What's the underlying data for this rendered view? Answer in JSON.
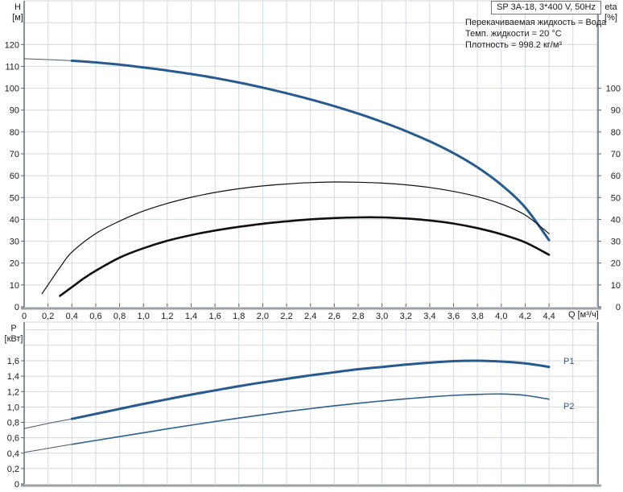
{
  "title_box": {
    "label": "SP 3A-18, 3*400 V, 50Hz"
  },
  "conditions": {
    "line1": "Перекачиваемая жидкость = Вода",
    "line2": "Темп. жидкости = 20 °C",
    "line3": "Плотность = 998.2 кг/м³"
  },
  "colors": {
    "grid": "#d3d9de",
    "axis": "#5a646d",
    "axis_bottom": "#9aa2a8",
    "curve_blue": "#275b8f",
    "curve_black": "#101010",
    "curve_tail": "#4a5a6a",
    "series_label": "#375a86"
  },
  "chart_data": [
    {
      "type": "line",
      "title": "SP 3A-18, 3*400 V, 50Hz",
      "x_axis": {
        "unit": "Q [м³/ч]",
        "min": 0,
        "max": 4.4,
        "grid_step": 0.2,
        "show_labels": true,
        "ticks": [
          [
            0,
            "0"
          ],
          [
            0.2,
            "0,2"
          ],
          [
            0.4,
            "0,4"
          ],
          [
            0.6,
            "0,6"
          ],
          [
            0.8,
            "0,8"
          ],
          [
            1,
            "1,0"
          ],
          [
            1.2,
            "1,2"
          ],
          [
            1.4,
            "1,4"
          ],
          [
            1.6,
            "1,6"
          ],
          [
            1.8,
            "1,8"
          ],
          [
            2,
            "2,0"
          ],
          [
            2.2,
            "2,2"
          ],
          [
            2.4,
            "2,4"
          ],
          [
            2.6,
            "2,6"
          ],
          [
            2.8,
            "2,8"
          ],
          [
            3,
            "3,0"
          ],
          [
            3.2,
            "3,2"
          ],
          [
            3.4,
            "3,4"
          ],
          [
            3.6,
            "3,6"
          ],
          [
            3.8,
            "3,8"
          ],
          [
            4,
            "4,0"
          ],
          [
            4.2,
            "4,2"
          ],
          [
            4.4,
            "4,4"
          ]
        ]
      },
      "y_left": {
        "name": "H",
        "unit": "[м]",
        "min": 0,
        "max": 120,
        "grid_step": 10,
        "ticks": [
          [
            0,
            "0"
          ],
          [
            10,
            "10"
          ],
          [
            20,
            "20"
          ],
          [
            30,
            "30"
          ],
          [
            40,
            "40"
          ],
          [
            50,
            "50"
          ],
          [
            60,
            "60"
          ],
          [
            70,
            "70"
          ],
          [
            80,
            "80"
          ],
          [
            90,
            "90"
          ],
          [
            100,
            "100"
          ],
          [
            110,
            "110"
          ],
          [
            120,
            "120"
          ]
        ]
      },
      "y_right": {
        "name": "eta",
        "unit": "[%]",
        "min": 0,
        "max": 100,
        "ticks": [
          [
            0,
            "0"
          ],
          [
            10,
            "10"
          ],
          [
            20,
            "20"
          ],
          [
            30,
            "30"
          ],
          [
            40,
            "40"
          ],
          [
            50,
            "50"
          ],
          [
            60,
            "60"
          ],
          [
            70,
            "70"
          ],
          [
            80,
            "80"
          ],
          [
            90,
            "90"
          ],
          [
            100,
            "100"
          ]
        ]
      },
      "series": [
        {
          "name": "head-curve-tail",
          "color": "#4a5a6a",
          "width": 1,
          "points": [
            [
              0,
              113.5
            ],
            [
              0.2,
              113.1
            ],
            [
              0.4,
              112.6
            ]
          ]
        },
        {
          "name": "head-curve",
          "color": "#275b8f",
          "width": 3,
          "points": [
            [
              0.4,
              112.6
            ],
            [
              0.6,
              111.8
            ],
            [
              0.8,
              110.8
            ],
            [
              1.0,
              109.5
            ],
            [
              1.2,
              108.1
            ],
            [
              1.4,
              106.5
            ],
            [
              1.6,
              104.7
            ],
            [
              1.8,
              102.6
            ],
            [
              2.0,
              100.3
            ],
            [
              2.2,
              97.7
            ],
            [
              2.4,
              94.9
            ],
            [
              2.6,
              91.8
            ],
            [
              2.8,
              88.4
            ],
            [
              3.0,
              84.6
            ],
            [
              3.2,
              80.4
            ],
            [
              3.4,
              75.7
            ],
            [
              3.6,
              70.3
            ],
            [
              3.8,
              63.8
            ],
            [
              4.0,
              55.8
            ],
            [
              4.2,
              45.5
            ],
            [
              4.4,
              30.5
            ]
          ]
        },
        {
          "name": "eta-pump-curve",
          "color": "#101010",
          "width": 1.2,
          "points": [
            [
              0.15,
              6
            ],
            [
              0.2,
              10
            ],
            [
              0.3,
              18
            ],
            [
              0.4,
              25
            ],
            [
              0.6,
              33.5
            ],
            [
              0.8,
              39.2
            ],
            [
              1.0,
              43.8
            ],
            [
              1.2,
              47.3
            ],
            [
              1.4,
              50.1
            ],
            [
              1.6,
              52.3
            ],
            [
              1.8,
              54.0
            ],
            [
              2.0,
              55.3
            ],
            [
              2.2,
              56.2
            ],
            [
              2.4,
              56.8
            ],
            [
              2.6,
              57.1
            ],
            [
              2.8,
              57.0
            ],
            [
              3.0,
              56.6
            ],
            [
              3.2,
              55.8
            ],
            [
              3.4,
              54.6
            ],
            [
              3.6,
              52.8
            ],
            [
              3.8,
              50.4
            ],
            [
              4.0,
              47.0
            ],
            [
              4.2,
              42.0
            ],
            [
              4.4,
              33.5
            ]
          ]
        },
        {
          "name": "eta-total-curve",
          "color": "#101010",
          "width": 2.6,
          "points": [
            [
              0.3,
              5
            ],
            [
              0.4,
              9
            ],
            [
              0.5,
              13
            ],
            [
              0.6,
              16.5
            ],
            [
              0.8,
              22.5
            ],
            [
              1.0,
              26.8
            ],
            [
              1.2,
              30.2
            ],
            [
              1.4,
              32.8
            ],
            [
              1.6,
              34.9
            ],
            [
              1.8,
              36.6
            ],
            [
              2.0,
              38.0
            ],
            [
              2.2,
              39.1
            ],
            [
              2.4,
              40.0
            ],
            [
              2.6,
              40.6
            ],
            [
              2.8,
              40.9
            ],
            [
              3.0,
              40.9
            ],
            [
              3.2,
              40.4
            ],
            [
              3.4,
              39.5
            ],
            [
              3.6,
              38.1
            ],
            [
              3.8,
              36.0
            ],
            [
              4.0,
              33.2
            ],
            [
              4.2,
              29.5
            ],
            [
              4.4,
              23.8
            ]
          ]
        }
      ]
    },
    {
      "type": "line",
      "x_axis": {
        "min": 0,
        "max": 4.4,
        "grid_step": 0.2,
        "show_labels": false,
        "ticks": []
      },
      "y_left": {
        "name": "P",
        "unit": "[кВт]",
        "min": 0,
        "max": 1.6,
        "grid_step": 0.2,
        "ticks": [
          [
            0,
            "0"
          ],
          [
            0.2,
            "0,2"
          ],
          [
            0.4,
            "0,4"
          ],
          [
            0.6,
            "0,6"
          ],
          [
            0.8,
            "0,8"
          ],
          [
            1,
            "1,0"
          ],
          [
            1.2,
            "1,2"
          ],
          [
            1.4,
            "1,4"
          ],
          [
            1.6,
            "1,6"
          ]
        ]
      },
      "series": [
        {
          "name": "p1-curve-tail",
          "color": "#4a5a6a",
          "width": 1,
          "points": [
            [
              0,
              0.72
            ],
            [
              0.2,
              0.785
            ],
            [
              0.4,
              0.845
            ]
          ]
        },
        {
          "name": "p1-curve",
          "label": "P1",
          "color": "#275b8f",
          "width": 3,
          "points": [
            [
              0.4,
              0.845
            ],
            [
              0.6,
              0.91
            ],
            [
              0.8,
              0.975
            ],
            [
              1.0,
              1.04
            ],
            [
              1.2,
              1.1
            ],
            [
              1.4,
              1.16
            ],
            [
              1.6,
              1.215
            ],
            [
              1.8,
              1.27
            ],
            [
              2.0,
              1.32
            ],
            [
              2.2,
              1.365
            ],
            [
              2.4,
              1.41
            ],
            [
              2.6,
              1.45
            ],
            [
              2.8,
              1.49
            ],
            [
              3.0,
              1.52
            ],
            [
              3.2,
              1.55
            ],
            [
              3.4,
              1.575
            ],
            [
              3.6,
              1.595
            ],
            [
              3.8,
              1.6
            ],
            [
              4.0,
              1.59
            ],
            [
              4.2,
              1.565
            ],
            [
              4.4,
              1.52
            ]
          ]
        },
        {
          "name": "p2-curve-tail",
          "color": "#4a5a6a",
          "width": 1,
          "points": [
            [
              0,
              0.41
            ],
            [
              0.2,
              0.462
            ],
            [
              0.4,
              0.515
            ]
          ]
        },
        {
          "name": "p2-curve",
          "label": "P2",
          "color": "#2d6090",
          "width": 1.6,
          "points": [
            [
              0.4,
              0.515
            ],
            [
              0.6,
              0.565
            ],
            [
              0.8,
              0.615
            ],
            [
              1.0,
              0.665
            ],
            [
              1.2,
              0.715
            ],
            [
              1.4,
              0.763
            ],
            [
              1.6,
              0.81
            ],
            [
              1.8,
              0.855
            ],
            [
              2.0,
              0.898
            ],
            [
              2.2,
              0.94
            ],
            [
              2.4,
              0.978
            ],
            [
              2.6,
              1.015
            ],
            [
              2.8,
              1.048
            ],
            [
              3.0,
              1.078
            ],
            [
              3.2,
              1.105
            ],
            [
              3.4,
              1.13
            ],
            [
              3.6,
              1.15
            ],
            [
              3.8,
              1.163
            ],
            [
              4.0,
              1.168
            ],
            [
              4.2,
              1.15
            ],
            [
              4.4,
              1.1
            ]
          ]
        }
      ]
    }
  ]
}
